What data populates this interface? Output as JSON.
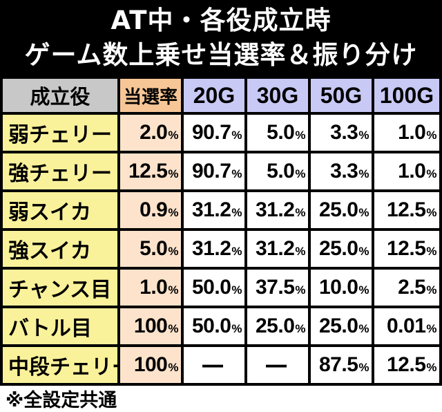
{
  "title": {
    "line1": "AT中・各役成立時",
    "line2": "ゲーム数上乗せ当選率＆振り分け"
  },
  "table": {
    "headers": [
      "成立役",
      "当選率",
      "20G",
      "30G",
      "50G",
      "100G"
    ],
    "rows": [
      {
        "role": "弱チェリー",
        "rate": "2.0%",
        "g20": "90.7%",
        "g30": "5.0%",
        "g50": "3.3%",
        "g100": "1.0%"
      },
      {
        "role": "強チェリー",
        "rate": "12.5%",
        "g20": "90.7%",
        "g30": "5.0%",
        "g50": "3.3%",
        "g100": "1.0%"
      },
      {
        "role": "弱スイカ",
        "rate": "0.9%",
        "g20": "31.2%",
        "g30": "31.2%",
        "g50": "25.0%",
        "g100": "12.5%"
      },
      {
        "role": "強スイカ",
        "rate": "5.0%",
        "g20": "31.2%",
        "g30": "31.2%",
        "g50": "25.0%",
        "g100": "12.5%"
      },
      {
        "role": "チャンス目",
        "rate": "1.0%",
        "g20": "50.0%",
        "g30": "37.5%",
        "g50": "10.0%",
        "g100": "2.5%"
      },
      {
        "role": "バトル目",
        "rate": "100%",
        "g20": "50.0%",
        "g30": "25.0%",
        "g50": "25.0%",
        "g100": "0.01%"
      },
      {
        "role": "中段チェリー",
        "rate": "100%",
        "g20": "―",
        "g30": "―",
        "g50": "87.5%",
        "g100": "12.5%"
      }
    ]
  },
  "footer": "※全設定共通",
  "colors": {
    "header_label_bg": "#c8c8c8",
    "header_rate_bg": "#f7c697",
    "header_g_bg": "#c9c9f6",
    "role_bg": "#faf29a",
    "rate_bg": "#fde3cc",
    "value_bg": "#ffffff"
  }
}
